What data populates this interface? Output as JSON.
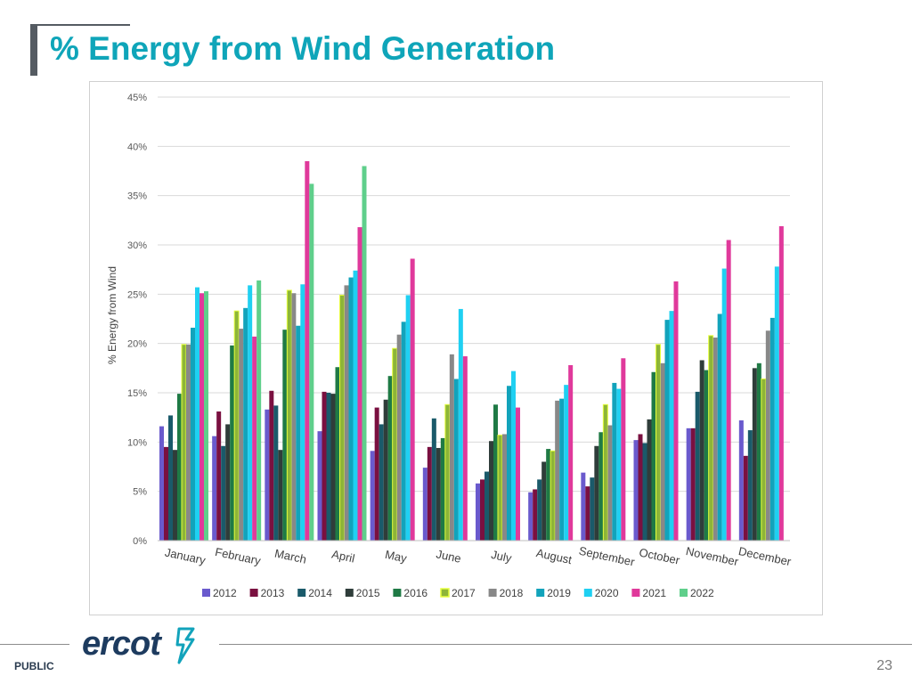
{
  "slide": {
    "title": "% Energy from Wind Generation",
    "footer_label": "PUBLIC",
    "page_number": "23",
    "logo_text": "ercot"
  },
  "chart_data": {
    "type": "bar",
    "ylabel": "% Energy from Wind",
    "ylim": [
      0,
      45
    ],
    "yticks": [
      0,
      5,
      10,
      15,
      20,
      25,
      30,
      35,
      40,
      45
    ],
    "ytick_labels": [
      "0%",
      "5%",
      "10%",
      "15%",
      "20%",
      "25%",
      "30%",
      "35%",
      "40%",
      "45%"
    ],
    "grid": true,
    "legend_position": "bottom",
    "categories": [
      "January",
      "February",
      "March",
      "April",
      "May",
      "June",
      "July",
      "August",
      "September",
      "October",
      "November",
      "December"
    ],
    "series": [
      {
        "name": "2012",
        "color": "#6a5acd",
        "values": [
          11.6,
          10.6,
          13.3,
          11.1,
          9.1,
          7.4,
          5.8,
          4.9,
          6.9,
          10.2,
          11.4,
          12.2
        ]
      },
      {
        "name": "2013",
        "color": "#7a1040",
        "values": [
          9.5,
          13.1,
          15.2,
          15.1,
          13.5,
          9.5,
          6.2,
          5.2,
          5.5,
          10.8,
          11.4,
          8.6
        ]
      },
      {
        "name": "2014",
        "color": "#1a5a6a",
        "values": [
          12.7,
          9.6,
          13.7,
          15.0,
          11.8,
          12.4,
          7.0,
          6.2,
          6.4,
          9.9,
          15.1,
          11.2
        ]
      },
      {
        "name": "2015",
        "color": "#2f3d3a",
        "values": [
          9.2,
          11.8,
          9.2,
          14.9,
          14.3,
          9.4,
          10.1,
          8.0,
          9.6,
          12.3,
          18.3,
          17.5
        ]
      },
      {
        "name": "2016",
        "color": "#1f7a45",
        "values": [
          14.9,
          19.8,
          21.4,
          17.6,
          16.7,
          10.4,
          13.8,
          9.3,
          11.0,
          17.1,
          17.3,
          18.0
        ]
      },
      {
        "name": "2017",
        "color": "#9bbb3b",
        "values": [
          19.9,
          23.3,
          25.4,
          24.9,
          19.5,
          13.8,
          10.7,
          9.1,
          13.8,
          19.9,
          20.8,
          16.4
        ]
      },
      {
        "name": "2018",
        "color": "#888888",
        "values": [
          19.9,
          21.5,
          25.1,
          25.9,
          20.9,
          18.9,
          10.8,
          14.2,
          11.7,
          18.0,
          20.6,
          21.3
        ]
      },
      {
        "name": "2019",
        "color": "#12a3bb",
        "values": [
          21.6,
          23.6,
          21.8,
          26.7,
          22.2,
          16.4,
          15.7,
          14.4,
          16.0,
          22.4,
          23.0,
          22.6
        ]
      },
      {
        "name": "2020",
        "color": "#1fd0f2",
        "values": [
          25.7,
          25.9,
          26.0,
          27.4,
          24.9,
          23.5,
          17.2,
          15.8,
          15.4,
          23.3,
          27.6,
          27.8
        ]
      },
      {
        "name": "2021",
        "color": "#e0399b",
        "values": [
          25.1,
          20.7,
          38.5,
          31.8,
          28.6,
          18.7,
          13.5,
          17.8,
          18.5,
          26.3,
          30.5,
          31.9
        ]
      },
      {
        "name": "2022",
        "color": "#5fcf8b",
        "values": [
          25.3,
          26.4,
          36.2,
          38.0,
          null,
          null,
          null,
          null,
          null,
          null,
          null,
          null
        ]
      }
    ]
  }
}
